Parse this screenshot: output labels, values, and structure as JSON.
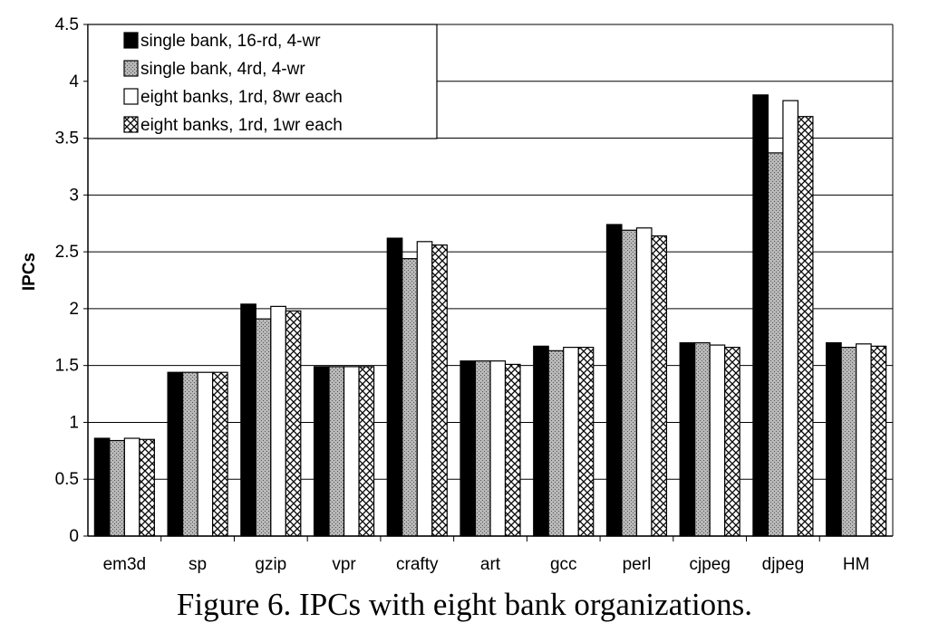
{
  "chart_data": {
    "type": "bar",
    "title": "",
    "caption": "Figure 6. IPCs with eight bank organizations.",
    "xlabel": "",
    "ylabel": "IPCs",
    "ylim": [
      0,
      4.5
    ],
    "yticks": [
      "0",
      "0.5",
      "1",
      "1.5",
      "2",
      "2.5",
      "3",
      "3.5",
      "4",
      "4.5"
    ],
    "grid": true,
    "legend_position": "top-left",
    "categories": [
      "em3d",
      "sp",
      "gzip",
      "vpr",
      "crafty",
      "art",
      "gcc",
      "perl",
      "cjpeg",
      "djpeg",
      "HM"
    ],
    "series": [
      {
        "name": "single bank, 16-rd, 4-wr",
        "fill": "#000000",
        "pattern": "solid",
        "values": [
          0.86,
          1.44,
          2.04,
          1.49,
          2.62,
          1.54,
          1.67,
          2.74,
          1.7,
          3.88,
          1.7
        ]
      },
      {
        "name": "single bank, 4rd, 4-wr",
        "fill": "#9a9a9a",
        "pattern": "dotted",
        "values": [
          0.84,
          1.44,
          1.91,
          1.49,
          2.44,
          1.54,
          1.63,
          2.69,
          1.7,
          3.37,
          1.66
        ]
      },
      {
        "name": "eight banks, 1rd, 8wr each",
        "fill": "#ffffff",
        "pattern": "none",
        "values": [
          0.86,
          1.44,
          2.02,
          1.49,
          2.59,
          1.54,
          1.66,
          2.71,
          1.68,
          3.83,
          1.69
        ]
      },
      {
        "name": "eight banks, 1rd, 1wr each",
        "fill": "#ffffff",
        "pattern": "crosshatch",
        "values": [
          0.85,
          1.44,
          1.98,
          1.49,
          2.56,
          1.51,
          1.66,
          2.64,
          1.66,
          3.69,
          1.67
        ]
      }
    ]
  }
}
